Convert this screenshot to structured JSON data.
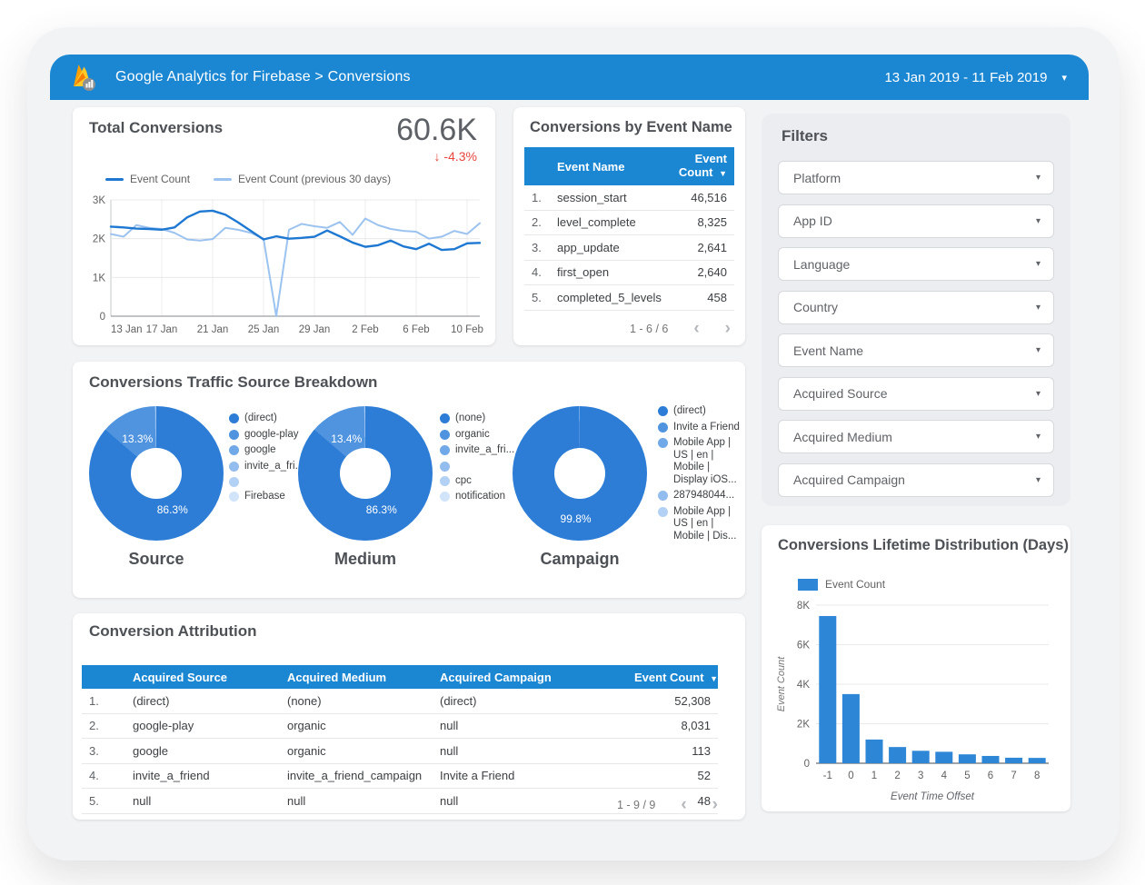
{
  "header": {
    "title": "Google Analytics for Firebase > Conversions",
    "date_range": "13 Jan 2019 - 11 Feb 2019",
    "bar_color": "#1b87d3"
  },
  "icons": {
    "caret_down": "▾",
    "sort_desc": "▼",
    "arrow_down": "↓",
    "chevron_left": "‹",
    "chevron_right": "›"
  },
  "scorecard": {
    "title": "Total Conversions",
    "value": "60.6K",
    "delta": "-4.3%",
    "delta_color": "#e8453c"
  },
  "event_table": {
    "title": "Conversions by Event Name",
    "columns": {
      "name": "Event Name",
      "count": "Event Count"
    },
    "rows": [
      {
        "num": "1.",
        "name": "session_start",
        "count": "46,516"
      },
      {
        "num": "2.",
        "name": "level_complete",
        "count": "8,325"
      },
      {
        "num": "3.",
        "name": "app_update",
        "count": "2,641"
      },
      {
        "num": "4.",
        "name": "first_open",
        "count": "2,640"
      },
      {
        "num": "5.",
        "name": "completed_5_levels",
        "count": "458"
      }
    ],
    "pagination": "1 - 6 / 6"
  },
  "filters": {
    "title": "Filters",
    "items": [
      "Platform",
      "App ID",
      "Language",
      "Country",
      "Event Name",
      "Acquired Source",
      "Acquired Medium",
      "Acquired Campaign"
    ]
  },
  "traffic": {
    "title": "Conversions Traffic Source Breakdown"
  },
  "attribution": {
    "title": "Conversion Attribution",
    "columns": [
      "",
      "Acquired Source",
      "Acquired Medium",
      "Acquired Campaign",
      "Event Count"
    ],
    "rows": [
      {
        "num": "1.",
        "source": "(direct)",
        "medium": "(none)",
        "campaign": "(direct)",
        "count": "52,308"
      },
      {
        "num": "2.",
        "source": "google-play",
        "medium": "organic",
        "campaign": "null",
        "count": "8,031"
      },
      {
        "num": "3.",
        "source": "google",
        "medium": "organic",
        "campaign": "null",
        "count": "113"
      },
      {
        "num": "4.",
        "source": "invite_a_friend",
        "medium": "invite_a_friend_campaign",
        "campaign": "Invite a Friend",
        "count": "52"
      },
      {
        "num": "5.",
        "source": "null",
        "medium": "null",
        "campaign": "null",
        "count": "48"
      }
    ],
    "pagination": "1 - 9 / 9"
  },
  "pie_colors": [
    "#2d7dd6",
    "#5094e0",
    "#71a9e8",
    "#92bdee",
    "#b3d1f4",
    "#d2e4f9"
  ],
  "chart_data": [
    {
      "id": "conversions-trend",
      "type": "line",
      "x_tick_labels": [
        "13 Jan",
        "17 Jan",
        "21 Jan",
        "25 Jan",
        "29 Jan",
        "2 Feb",
        "6 Feb",
        "10 Feb"
      ],
      "tick_indices": [
        0,
        4,
        8,
        12,
        16,
        20,
        24,
        28
      ],
      "ylim": [
        0,
        3000
      ],
      "y_ticks": [
        0,
        1000,
        2000,
        3000
      ],
      "y_tick_labels": [
        "0",
        "1K",
        "2K",
        "3K"
      ],
      "series": [
        {
          "name": "Event Count",
          "color": "#1e78d2",
          "width": 2.4,
          "values": [
            2310,
            2290,
            2260,
            2250,
            2230,
            2290,
            2550,
            2700,
            2720,
            2620,
            2420,
            2200,
            1980,
            2060,
            2000,
            2020,
            2050,
            2210,
            2060,
            1900,
            1790,
            1830,
            1950,
            1800,
            1730,
            1870,
            1710,
            1730,
            1880,
            1890
          ]
        },
        {
          "name": "Event Count (previous 30 days)",
          "color": "#9cc3ef",
          "width": 2,
          "values": [
            2120,
            2050,
            2350,
            2280,
            2250,
            2150,
            1980,
            1950,
            1990,
            2280,
            2230,
            2150,
            2000,
            0,
            2230,
            2380,
            2320,
            2280,
            2430,
            2100,
            2520,
            2350,
            2250,
            2200,
            2180,
            2000,
            2050,
            2200,
            2120,
            2400
          ]
        }
      ]
    },
    {
      "id": "source-donut",
      "type": "pie",
      "title": "Source",
      "slices": [
        {
          "label": "(direct)",
          "pct": 86.3
        },
        {
          "label": "google-play",
          "pct": 13.3
        },
        {
          "label": "google",
          "pct": 0.2
        },
        {
          "label": "invite_a_fri...",
          "pct": 0.1
        },
        {
          "label": "",
          "pct": 0.05
        },
        {
          "label": "Firebase",
          "pct": 0.05
        }
      ],
      "labels": [
        {
          "text": "13.3%",
          "x": 36,
          "y": 24
        },
        {
          "text": "86.3%",
          "x": 62,
          "y": 77
        }
      ]
    },
    {
      "id": "medium-donut",
      "type": "pie",
      "title": "Medium",
      "slices": [
        {
          "label": "(none)",
          "pct": 86.3
        },
        {
          "label": "organic",
          "pct": 13.4
        },
        {
          "label": "invite_a_fri...",
          "pct": 0.1
        },
        {
          "label": "",
          "pct": 0.1
        },
        {
          "label": "cpc",
          "pct": 0.05
        },
        {
          "label": "notification",
          "pct": 0.05
        }
      ],
      "labels": [
        {
          "text": "13.4%",
          "x": 36,
          "y": 24
        },
        {
          "text": "86.3%",
          "x": 62,
          "y": 77
        }
      ]
    },
    {
      "id": "campaign-donut",
      "type": "pie",
      "title": "Campaign",
      "slices": [
        {
          "label": "(direct)",
          "pct": 99.8
        },
        {
          "label": "Invite a Friend",
          "pct": 0.08
        },
        {
          "label": "Mobile App | US | en | Mobile | Display iOS...",
          "pct": 0.05
        },
        {
          "label": "287948044...",
          "pct": 0.04
        },
        {
          "label": "Mobile App | US | en | Mobile | Dis...",
          "pct": 0.03
        }
      ],
      "labels": [
        {
          "text": "99.8%",
          "x": 47,
          "y": 84
        }
      ]
    },
    {
      "id": "lifetime-bar",
      "type": "bar",
      "title": "Conversions Lifetime Distribution (Days)",
      "legend": "Event Count",
      "categories": [
        "-1",
        "0",
        "1",
        "2",
        "3",
        "4",
        "5",
        "6",
        "7",
        "8"
      ],
      "values": [
        7450,
        3500,
        1200,
        820,
        630,
        580,
        450,
        370,
        280,
        270
      ],
      "ylim": [
        0,
        8000
      ],
      "y_ticks": [
        0,
        2000,
        4000,
        6000,
        8000
      ],
      "y_tick_labels": [
        "0",
        "2K",
        "4K",
        "6K",
        "8K"
      ],
      "xlabel": "Event Time Offset",
      "ylabel": "Event Count",
      "bar_color": "#2e86d6"
    }
  ]
}
